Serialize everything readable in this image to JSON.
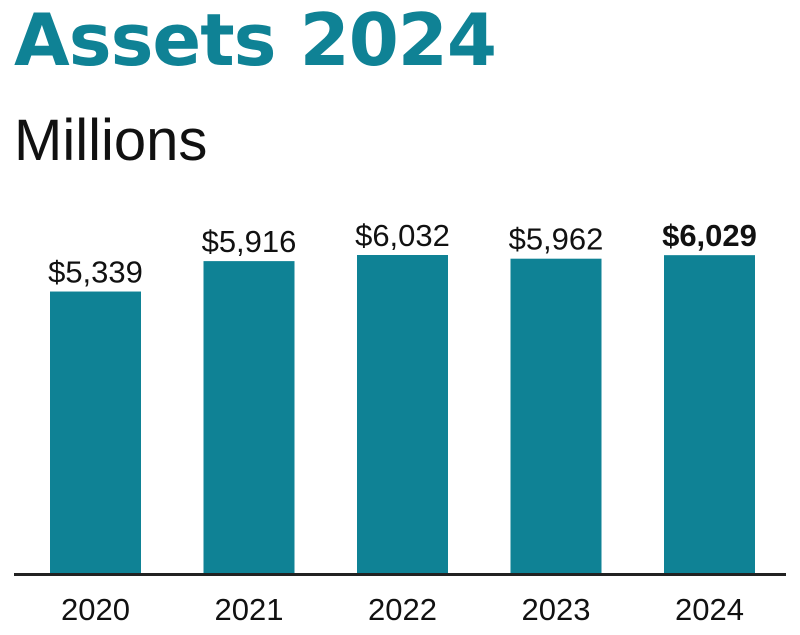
{
  "colors": {
    "accent": "#0f8295",
    "text": "#111111",
    "axis": "#222222"
  },
  "header": {
    "title": "Assets 2024",
    "subtitle": "Millions"
  },
  "chart_data": {
    "type": "bar",
    "title": "Assets 2024",
    "subtitle": "Millions",
    "xlabel": "",
    "ylabel": "",
    "unit": "$ millions",
    "categories": [
      "2020",
      "2021",
      "2022",
      "2023",
      "2024"
    ],
    "values": [
      5339,
      5916,
      6032,
      5962,
      6029
    ],
    "data_labels": [
      "$5,339",
      "$5,916",
      "$6,032",
      "$5,962",
      "$6,029"
    ],
    "highlight_index": 4,
    "ylim": [
      0,
      6032
    ],
    "grid": false,
    "legend": "none"
  }
}
